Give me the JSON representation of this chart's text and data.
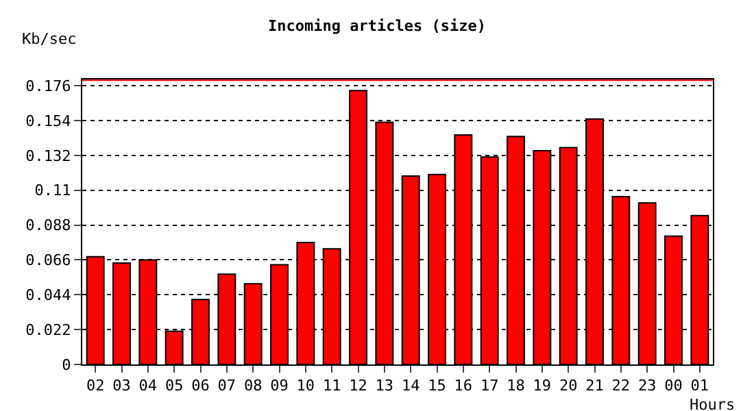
{
  "chart_data": {
    "type": "bar",
    "title": "Incoming articles (size)",
    "ylabel": "Kb/sec",
    "xlabel": "Hours",
    "categories": [
      "02",
      "03",
      "04",
      "05",
      "06",
      "07",
      "08",
      "09",
      "10",
      "11",
      "12",
      "13",
      "14",
      "15",
      "16",
      "17",
      "18",
      "19",
      "20",
      "21",
      "22",
      "23",
      "00",
      "01"
    ],
    "series": [
      {
        "color": "#ff0000",
        "values": [
          0.068,
          0.064,
          0.066,
          0.021,
          0.041,
          0.057,
          0.051,
          0.063,
          0.077,
          0.073,
          0.173,
          0.153,
          0.119,
          0.12,
          0.145,
          0.131,
          0.144,
          0.135,
          0.137,
          0.155,
          0.106,
          0.102,
          0.081,
          0.094
        ]
      }
    ],
    "ylim": [
      0,
      0.18
    ],
    "yticks": [
      0,
      0.022,
      0.044,
      0.066,
      0.088,
      0.11,
      0.132,
      0.154,
      0.176
    ],
    "grid": "y",
    "line_style": "dotted",
    "ref_lines": [
      {
        "axis": "y",
        "value": 0.1795,
        "color": "#ff0000"
      }
    ]
  }
}
